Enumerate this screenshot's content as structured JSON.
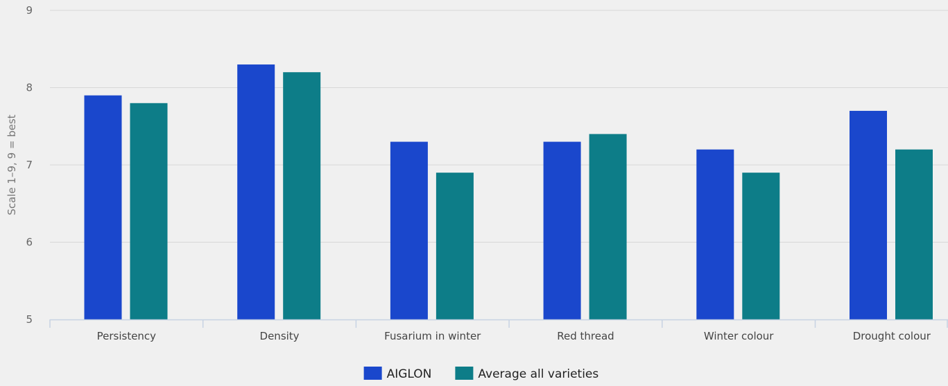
{
  "chart_data": {
    "type": "bar",
    "title": "",
    "xlabel": "",
    "ylabel": "Scale 1–9, 9 = best",
    "ylim": [
      5,
      9
    ],
    "yticks": [
      5,
      6,
      7,
      8,
      9
    ],
    "grid": true,
    "legend_position": "bottom-center",
    "categories": [
      "Persistency",
      "Density",
      "Fusarium in winter",
      "Red thread",
      "Winter colour",
      "Drought colour"
    ],
    "series": [
      {
        "name": "AIGLON",
        "color": "#1a47cc",
        "values": [
          7.9,
          8.3,
          7.3,
          7.3,
          7.2,
          7.7
        ]
      },
      {
        "name": "Average all varieties",
        "color": "#0d7d88",
        "values": [
          7.8,
          8.2,
          6.9,
          7.4,
          6.9,
          7.2
        ]
      }
    ]
  }
}
